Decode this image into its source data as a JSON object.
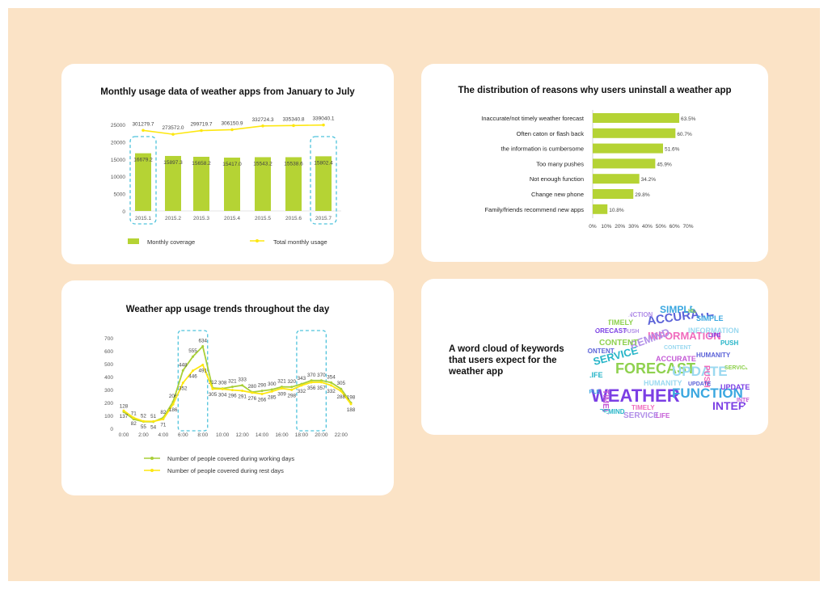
{
  "colors": {
    "background": "#fbe3c6",
    "bar_green": "#b5d334",
    "line_yellow": "#fde711",
    "line_green": "#a8cf38",
    "highlight_dash": "#4fc3dc"
  },
  "cards": {
    "monthly": {
      "title": "Monthly usage data of weather apps from January to July"
    },
    "reasons": {
      "title": "The distribution of reasons why users uninstall a weather app"
    },
    "daily": {
      "title": "Weather app usage trends throughout the day"
    },
    "wordcloud": {
      "title_lines": [
        "A word cloud of keywords",
        "that users expect for the",
        "weather app"
      ]
    }
  },
  "chart_data": [
    {
      "type": "bar",
      "title": "Monthly usage data of weather apps from January to July",
      "categories": [
        "2015.1",
        "2015.2",
        "2015.3",
        "2015.4",
        "2015.5",
        "2015.6",
        "2015.7"
      ],
      "series": [
        {
          "name": "Monthly coverage",
          "type": "bar",
          "values": [
            16679.2,
            15897.3,
            15658.2,
            15417.0,
            15543.2,
            15538.6,
            15802.4
          ],
          "labels": [
            "16679.2",
            "15897.3",
            "15658.2",
            "15417.0",
            "15543.2",
            "15538.6",
            "15802.4"
          ]
        },
        {
          "name": "Total monthly usage",
          "type": "line",
          "values": [
            301279.7,
            273572.0,
            299719.7,
            306150.9,
            332724.3,
            335340.8,
            339040.1
          ],
          "labels": [
            "301279.7",
            "273572.0",
            "299719.7",
            "306150.9",
            "332724.3",
            "335340.8",
            "339040.1"
          ]
        }
      ],
      "y_ticks": [
        "0",
        "5000",
        "10000",
        "15000",
        "20000",
        "25000"
      ],
      "ylim": [
        0,
        25000
      ],
      "highlighted_categories": [
        "2015.1",
        "2015.7"
      ],
      "legend": "bottom"
    },
    {
      "type": "bar",
      "orientation": "horizontal",
      "title": "The distribution of reasons why users uninstall a weather app",
      "categories": [
        "Inaccurate/not timely weather forecast",
        "Often caton or flash back",
        "the information is cumbersome",
        "Too many pushes",
        "Not enough function",
        "Change new phone",
        "Family/friends recommend new apps"
      ],
      "values": [
        63.5,
        60.7,
        51.6,
        45.9,
        34.2,
        29.8,
        10.8
      ],
      "value_labels": [
        "63.5%",
        "60.7%",
        "51.6%",
        "45.9%",
        "34.2%",
        "29.8%",
        "10.8%"
      ],
      "x_ticks": [
        "0%",
        "10%",
        "20%",
        "30%",
        "40%",
        "50%",
        "60%",
        "70%"
      ],
      "xlim": [
        0,
        70
      ]
    },
    {
      "type": "line",
      "title": "Weather app usage trends throughout the day",
      "x": [
        0,
        1,
        2,
        3,
        4,
        5,
        6,
        7,
        8,
        9,
        10,
        11,
        12,
        13,
        14,
        15,
        16,
        17,
        18,
        19,
        20,
        21,
        22,
        23
      ],
      "x_ticks": [
        "0:00",
        "2:00",
        "4:00",
        "6:00",
        "8:00",
        "10:00",
        "12:00",
        "14:00",
        "16:00",
        "18:00",
        "20:00",
        "22:00"
      ],
      "y_ticks": [
        "0",
        "100",
        "200",
        "300",
        "400",
        "500",
        "600",
        "700"
      ],
      "ylim": [
        0,
        700
      ],
      "series": [
        {
          "name": "Number of people covered during working days",
          "values": [
            128,
            71,
            52,
            51,
            82,
            206,
            448,
            555,
            634,
            312,
            308,
            321,
            333,
            280,
            290,
            300,
            321,
            320,
            343,
            370,
            370,
            354,
            305,
            198
          ]
        },
        {
          "name": "Number of people covered during rest days",
          "values": [
            137,
            82,
            55,
            54,
            71,
            186,
            352,
            446,
            491,
            305,
            304,
            296,
            291,
            276,
            266,
            285,
            309,
            298,
            332,
            356,
            357,
            332,
            288,
            188
          ]
        }
      ],
      "highlighted_ranges": [
        [
          6,
          8
        ],
        [
          18,
          20
        ]
      ],
      "legend": "bottom"
    }
  ],
  "wordcloud": {
    "words": [
      "WEATHER",
      "FUNCTION",
      "FORECAST",
      "INFORMATION",
      "ACCURATE",
      "SERVICE",
      "TIMELY",
      "UPDATE",
      "REMIND",
      "INTERFACE",
      "SIMPLE",
      "CONTENT",
      "PUSH",
      "HUMANITY",
      "LIFE",
      "ACCURATE",
      "INFORMATION",
      "SERVICE",
      "UPDATE",
      "SIMPLE",
      "TIMELY",
      "REMIND",
      "CONTENT",
      "PUSH",
      "LIFE",
      "HUMANITY",
      "FUNCTION",
      "FORECAST",
      "ACCURATE",
      "SERVICE",
      "TIMELY",
      "UPDATE",
      "REMIND",
      "INTERFACE",
      "CONTENT",
      "PUSH",
      "LIFE",
      "SIMPLE",
      "HUMANITY",
      "INFORMATION"
    ]
  }
}
